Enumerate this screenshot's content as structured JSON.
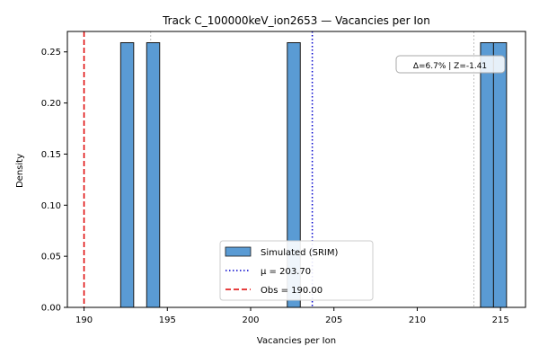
{
  "chart_data": {
    "type": "bar",
    "title": "Track C_100000keV_ion2653 — Vacancies per Ion",
    "xlabel": "Vacancies per Ion",
    "ylabel": "Density",
    "xlim": [
      189,
      216.5
    ],
    "ylim": [
      0,
      0.27
    ],
    "xticks": [
      190,
      195,
      200,
      205,
      210,
      215
    ],
    "yticks": [
      0.0,
      0.05,
      0.1,
      0.15,
      0.2,
      0.25
    ],
    "xtick_labels": [
      "190",
      "195",
      "200",
      "205",
      "210",
      "215"
    ],
    "ytick_labels": [
      "0.00",
      "0.05",
      "0.10",
      "0.15",
      "0.20",
      "0.25"
    ],
    "bins": [
      {
        "x0": 192.2,
        "x1": 192.98,
        "value": 0.259
      },
      {
        "x0": 193.76,
        "x1": 194.54,
        "value": 0.259
      },
      {
        "x0": 202.2,
        "x1": 202.98,
        "value": 0.259
      },
      {
        "x0": 213.8,
        "x1": 214.58,
        "value": 0.259
      },
      {
        "x0": 214.58,
        "x1": 215.36,
        "value": 0.259
      }
    ],
    "reference_lines": [
      {
        "label": "Simulated (SRIM)",
        "kind": "bar"
      },
      {
        "label": "μ = 203.70",
        "x": 203.7,
        "style": "dotted",
        "color": "#0000cc"
      },
      {
        "label": "Obs = 190.00",
        "x": 190.0,
        "style": "dashed",
        "color": "#dd0000"
      }
    ],
    "sigma_lines": [
      {
        "x": 194.0,
        "color": "#c0c0c0"
      },
      {
        "x": 213.4,
        "color": "#c0c0c0"
      }
    ],
    "annotation": "Δ=6.7% | Z=-1.41",
    "legend_position": "lower-center",
    "colors": {
      "bar_fill": "#5a9bd4",
      "bar_edge": "#1a1a1a",
      "mean": "#0000cc",
      "obs": "#dd0000"
    }
  }
}
